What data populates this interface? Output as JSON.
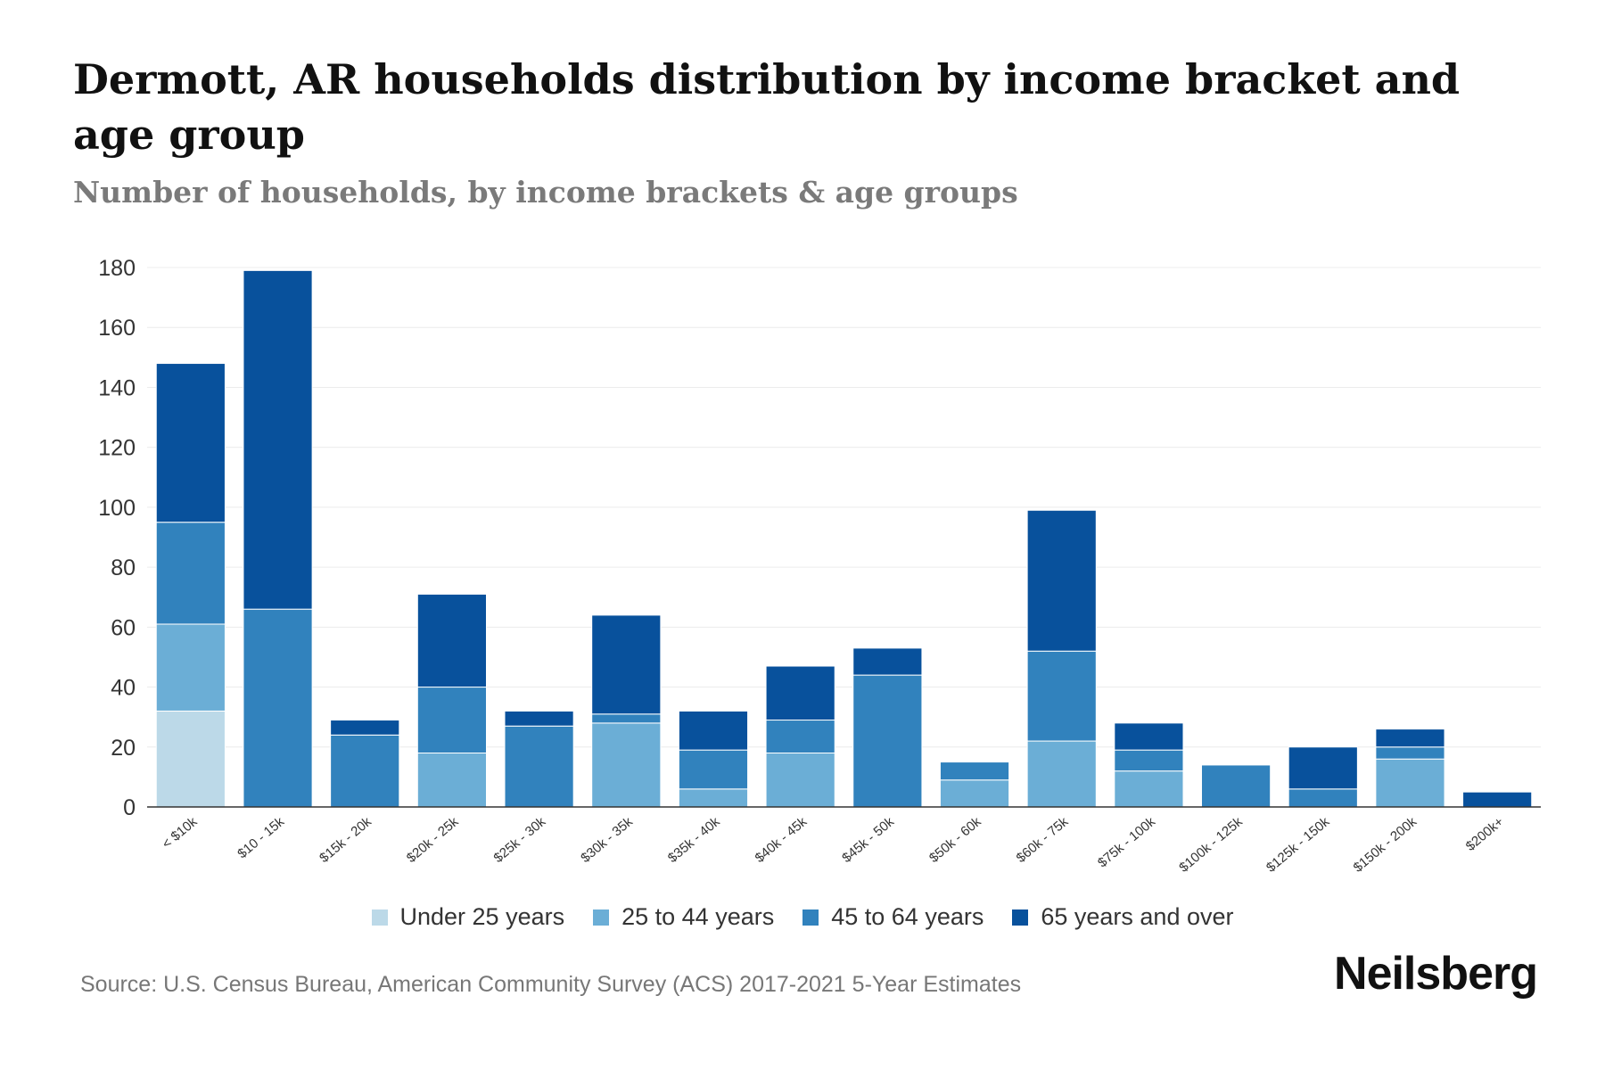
{
  "header": {
    "title": "Dermott, AR households distribution by income bracket and age group",
    "subtitle": "Number of households, by income brackets & age groups"
  },
  "footer": {
    "source": "Source: U.S. Census Bureau, American Community Survey (ACS) 2017-2021 5-Year Estimates",
    "brand": "Neilsberg"
  },
  "colors": {
    "under_25": "#bcd9e8",
    "age_25_44": "#6baed6",
    "age_45_64": "#3182bd",
    "age_65_plus": "#08519c",
    "grid": "#ececec",
    "axis": "#333333"
  },
  "chart_data": {
    "type": "bar",
    "stacked": true,
    "title": "Dermott, AR households distribution by income bracket and age group",
    "subtitle": "Number of households, by income brackets & age groups",
    "xlabel": "",
    "ylabel": "",
    "ylim": [
      0,
      180
    ],
    "yticks": [
      0,
      20,
      40,
      60,
      80,
      100,
      120,
      140,
      160,
      180
    ],
    "grid": true,
    "legend_position": "bottom-center",
    "categories": [
      "< $10k",
      "$10 - 15k",
      "$15k - 20k",
      "$20k - 25k",
      "$25k - 30k",
      "$30k - 35k",
      "$35k - 40k",
      "$40k - 45k",
      "$45k - 50k",
      "$50k - 60k",
      "$60k - 75k",
      "$75k - 100k",
      "$100k - 125k",
      "$125k - 150k",
      "$150k - 200k",
      "$200k+"
    ],
    "series": [
      {
        "name": "Under 25 years",
        "color": "#bcd9e8",
        "values": [
          32,
          0,
          0,
          0,
          0,
          0,
          0,
          0,
          0,
          0,
          0,
          0,
          0,
          0,
          0,
          0
        ]
      },
      {
        "name": "25 to 44 years",
        "color": "#6baed6",
        "values": [
          29,
          0,
          0,
          18,
          0,
          28,
          6,
          18,
          0,
          9,
          22,
          12,
          0,
          0,
          16,
          0
        ]
      },
      {
        "name": "45 to 64 years",
        "color": "#3182bd",
        "values": [
          34,
          66,
          24,
          22,
          27,
          3,
          13,
          11,
          44,
          6,
          30,
          7,
          14,
          6,
          4,
          0
        ]
      },
      {
        "name": "65 years and over",
        "color": "#08519c",
        "values": [
          53,
          113,
          5,
          31,
          5,
          33,
          13,
          18,
          9,
          0,
          47,
          9,
          0,
          14,
          6,
          5
        ]
      }
    ]
  }
}
